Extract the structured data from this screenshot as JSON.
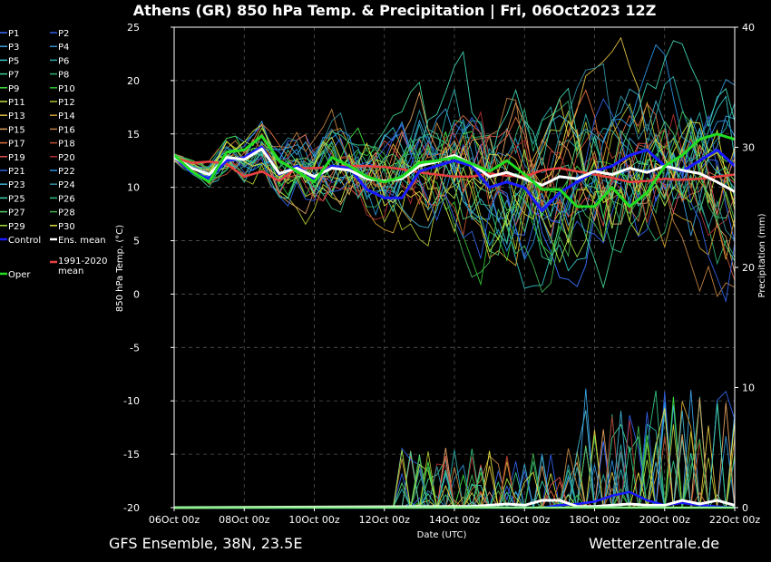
{
  "title": "Athens  (GR)  850 hPa Temp. & Precipitation | Fri, 06Oct2023 12Z",
  "footer_left": "GFS Ensemble, 38N, 23.5E",
  "footer_right": "Wetterzentrale.de",
  "chart_data": {
    "type": "line",
    "xlabel": "Date (UTC)",
    "ylabel_left": "850 hPa Temp. (°C)",
    "ylabel_right": "Precipitation (mm)",
    "x_ticks": [
      "06Oct 00z",
      "08Oct 00z",
      "10Oct 00z",
      "12Oct 00z",
      "14Oct 00z",
      "16Oct 00z",
      "18Oct 00z",
      "20Oct 00z",
      "22Oct 00z"
    ],
    "x_range_hours": [
      0,
      384
    ],
    "y_left_ticks": [
      25,
      20,
      15,
      10,
      5,
      0,
      -5,
      -10,
      -15,
      -20
    ],
    "y_left_range": [
      -20,
      25
    ],
    "y_right_ticks": [
      40,
      30,
      20,
      10,
      0
    ],
    "y_right_range": [
      0,
      40
    ],
    "grid": true,
    "legend": {
      "col1": [
        "P1",
        "P3",
        "P5",
        "P7",
        "P9",
        "P11",
        "P13",
        "P15",
        "P17",
        "P19",
        "P21",
        "P23",
        "P25",
        "P27",
        "P29",
        "Control",
        "",
        "Oper"
      ],
      "col2": [
        "P2",
        "P4",
        "P6",
        "P8",
        "P10",
        "P12",
        "P14",
        "P16",
        "P18",
        "P20",
        "P22",
        "P24",
        "P26",
        "P28",
        "P30",
        "Ens. mean",
        "1991-2020 mean"
      ],
      "colors": {
        "P1": "#3b6fff",
        "P2": "#2f5fe8",
        "P3": "#3aa0e0",
        "P4": "#2e90d0",
        "P5": "#36c4c4",
        "P6": "#2aa8a8",
        "P7": "#40d090",
        "P8": "#2fb070",
        "P9": "#40e040",
        "P10": "#30c030",
        "P11": "#c8e040",
        "P12": "#b0c030",
        "P13": "#e0c040",
        "P14": "#d0a030",
        "P15": "#e0a060",
        "P16": "#c08040",
        "P17": "#e07040",
        "P18": "#c05030",
        "P19": "#e05050",
        "P20": "#b03030",
        "P21": "#3060e0",
        "P22": "#2890e0",
        "P23": "#40b0d0",
        "P24": "#3090a0",
        "P25": "#40d0b0",
        "P26": "#30c080",
        "P27": "#50d070",
        "P28": "#40b050",
        "P29": "#a0e040",
        "P30": "#e0e040",
        "Control": "#1a1aff",
        "Ens. mean": "#ffffff",
        "1991-2020 mean": "#e84040",
        "Oper": "#22dd22"
      }
    },
    "series": [
      {
        "name": "Control",
        "color": "#1a1aff",
        "width": 3,
        "x": [
          0,
          12,
          24,
          36,
          48,
          60,
          72,
          84,
          96,
          108,
          120,
          132,
          144,
          156,
          168,
          180,
          192,
          204,
          216,
          228,
          240,
          252,
          264,
          276,
          288,
          300,
          312,
          324,
          336,
          348,
          360,
          372,
          384
        ],
        "y": [
          12.8,
          11.4,
          10.8,
          12.5,
          12.8,
          13.8,
          11.2,
          12.0,
          10.8,
          12.0,
          11.8,
          9.8,
          9.0,
          9.0,
          11.5,
          12.0,
          12.5,
          12.0,
          10.0,
          10.5,
          10.0,
          7.8,
          9.5,
          10.5,
          11.5,
          12.0,
          13.0,
          13.5,
          12.0,
          11.5,
          12.5,
          13.5,
          12.0
        ]
      },
      {
        "name": "Ens. mean",
        "color": "#ffffff",
        "width": 3,
        "x": [
          0,
          12,
          24,
          36,
          48,
          60,
          72,
          84,
          96,
          108,
          120,
          132,
          144,
          156,
          168,
          180,
          192,
          204,
          216,
          228,
          240,
          252,
          264,
          276,
          288,
          300,
          312,
          324,
          336,
          348,
          360,
          372,
          384
        ],
        "y": [
          12.8,
          11.8,
          11.2,
          12.8,
          12.6,
          13.6,
          11.3,
          11.8,
          11.0,
          11.8,
          11.6,
          10.8,
          10.6,
          10.8,
          12.0,
          12.4,
          13.0,
          12.2,
          11.0,
          11.4,
          10.8,
          10.2,
          11.0,
          10.8,
          11.5,
          11.2,
          11.8,
          11.4,
          12.0,
          11.6,
          11.3,
          10.5,
          9.6
        ]
      },
      {
        "name": "Oper",
        "color": "#22dd22",
        "width": 3,
        "x": [
          0,
          12,
          24,
          36,
          48,
          60,
          72,
          84,
          96,
          108,
          120,
          132,
          144,
          156,
          168,
          180,
          192,
          204,
          216,
          228,
          240,
          252,
          264,
          276,
          288,
          300,
          312,
          324,
          336,
          348,
          360,
          372,
          384
        ],
        "y": [
          13.0,
          11.5,
          10.5,
          13.3,
          13.5,
          14.8,
          12.5,
          11.5,
          10.5,
          12.8,
          12.0,
          11.0,
          10.5,
          11.0,
          12.3,
          12.5,
          12.8,
          12.2,
          11.5,
          12.5,
          11.2,
          9.8,
          9.8,
          8.2,
          8.2,
          10.0,
          8.2,
          9.5,
          12.0,
          13.0,
          14.5,
          15.0,
          14.5
        ]
      },
      {
        "name": "1991-2020 mean",
        "color": "#e84040",
        "width": 2.5,
        "x": [
          0,
          12,
          24,
          36,
          48,
          60,
          72,
          84,
          96,
          108,
          120,
          132,
          144,
          156,
          168,
          180,
          192,
          204,
          216,
          228,
          240,
          252,
          264,
          276,
          288,
          300,
          312,
          324,
          336,
          348,
          360,
          372,
          384
        ],
        "y": [
          12.8,
          12.3,
          12.4,
          12.2,
          11.0,
          11.5,
          10.6,
          11.8,
          11.8,
          11.9,
          12.0,
          12.0,
          11.9,
          11.7,
          11.4,
          11.2,
          11.0,
          11.0,
          11.3,
          11.1,
          11.0,
          11.6,
          11.8,
          11.5,
          11.2,
          10.9,
          10.5,
          10.6,
          10.8,
          10.7,
          10.8,
          11.0,
          11.2
        ]
      }
    ],
    "precip_series": [
      {
        "name": "Control",
        "color": "#1a1aff",
        "width": 2.5,
        "x": [
          0,
          192,
          204,
          216,
          228,
          240,
          252,
          264,
          276,
          288,
          300,
          312,
          324,
          336,
          348,
          360,
          372,
          384
        ],
        "y": [
          0,
          0,
          0,
          0,
          0,
          0,
          0,
          0.2,
          0.3,
          0.5,
          1.0,
          1.3,
          0.6,
          0.2,
          0.4,
          0.2,
          0.1,
          0
        ]
      },
      {
        "name": "Ens. mean",
        "color": "#ffffff",
        "width": 3,
        "x": [
          0,
          192,
          204,
          216,
          228,
          240,
          252,
          264,
          276,
          288,
          300,
          312,
          324,
          336,
          348,
          360,
          372,
          384
        ],
        "y": [
          0,
          0.1,
          0.1,
          0.2,
          0.3,
          0.2,
          0.6,
          0.6,
          0.1,
          0.1,
          0.2,
          0.3,
          0.2,
          0.2,
          0.6,
          0.3,
          0.6,
          0.2
        ]
      },
      {
        "name": "Oper",
        "color": "#22dd22",
        "width": 2.5,
        "x": [
          0,
          192,
          204,
          216,
          228,
          240,
          252,
          264,
          276,
          288,
          300,
          312,
          324,
          336,
          348,
          360,
          372,
          384
        ],
        "y": [
          0,
          0,
          0,
          0,
          0,
          0,
          0,
          0,
          0,
          0,
          0,
          0,
          0,
          0,
          0,
          0,
          0,
          0
        ]
      }
    ]
  }
}
